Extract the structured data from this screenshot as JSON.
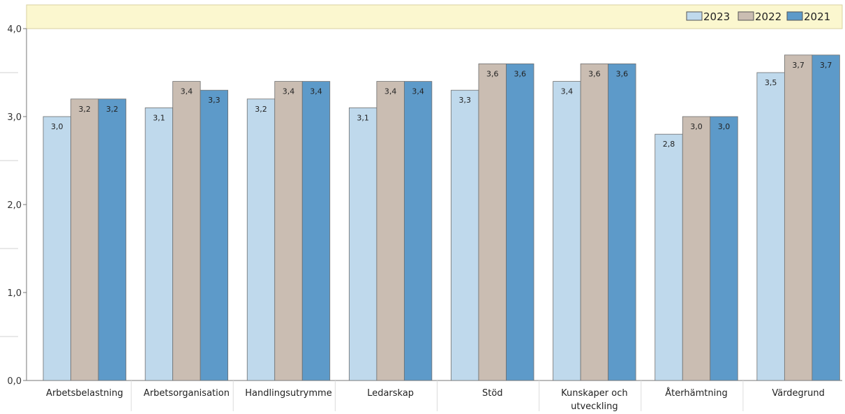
{
  "chart_data": {
    "type": "bar",
    "categories": [
      "Arbetsbelastning",
      "Arbetsorganisation",
      "Handlingsutrymme",
      "Ledarskap",
      "Stöd",
      "Kunskaper och utveckling",
      "Återhämtning",
      "Värdegrund"
    ],
    "series": [
      {
        "name": "2023",
        "color": "#bfd9ec",
        "values": [
          3.0,
          3.1,
          3.2,
          3.1,
          3.3,
          3.4,
          2.8,
          3.5
        ],
        "labels": [
          "3,0",
          "3,1",
          "3,2",
          "3,1",
          "3,3",
          "3,4",
          "2,8",
          "3,5"
        ]
      },
      {
        "name": "2022",
        "color": "#cabdb2",
        "values": [
          3.2,
          3.4,
          3.4,
          3.4,
          3.6,
          3.6,
          3.0,
          3.7
        ],
        "labels": [
          "3,2",
          "3,4",
          "3,4",
          "3,4",
          "3,6",
          "3,6",
          "3,0",
          "3,7"
        ]
      },
      {
        "name": "2021",
        "color": "#5d9ac9",
        "values": [
          3.2,
          3.3,
          3.4,
          3.4,
          3.6,
          3.6,
          3.0,
          3.7
        ],
        "labels": [
          "3,2",
          "3,3",
          "3,4",
          "3,4",
          "3,6",
          "3,6",
          "3,0",
          "3,7"
        ]
      }
    ],
    "ylim": [
      0,
      4
    ],
    "yticks": [
      {
        "value": 0,
        "label": "0,0"
      },
      {
        "value": 1,
        "label": "1,0"
      },
      {
        "value": 2,
        "label": "2,0"
      },
      {
        "value": 3,
        "label": "3,0"
      },
      {
        "value": 4,
        "label": "4,0"
      }
    ],
    "minor_ytick_step": 0.5,
    "title": "",
    "xlabel": "",
    "ylabel": "",
    "legend_position": "top-right",
    "legend_band_color": "#fbf7cf",
    "grid": false
  }
}
